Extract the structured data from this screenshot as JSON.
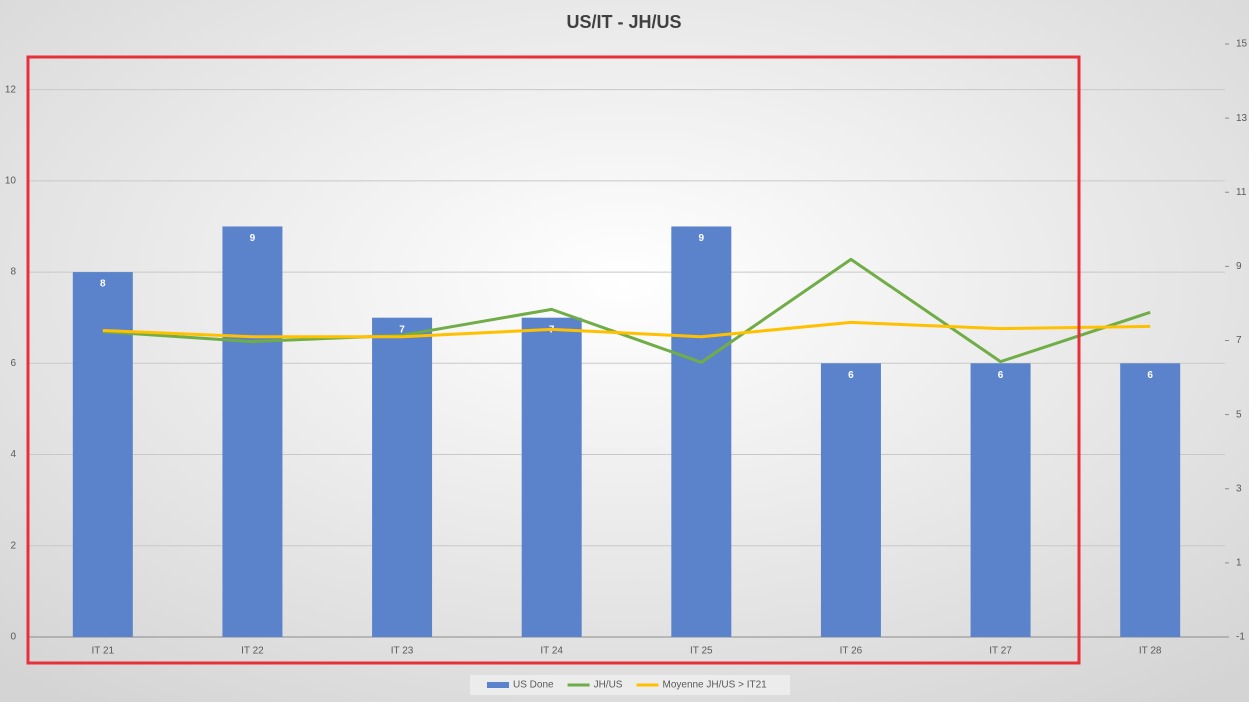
{
  "chart_data": {
    "type": "bar",
    "title": "US/IT  - JH/US",
    "categories": [
      "IT 21",
      "IT 22",
      "IT 23",
      "IT 24",
      "IT 25",
      "IT 26",
      "IT 27",
      "IT 28"
    ],
    "series": [
      {
        "name": "US Done",
        "type": "bar",
        "color": "#5b83cc",
        "values": [
          8,
          9,
          7,
          7,
          9,
          6,
          6,
          6
        ]
      },
      {
        "name": "JH/US",
        "type": "line",
        "axis": "y2",
        "color": "#70ad47",
        "values": [
          7.24,
          6.97,
          7.14,
          7.84,
          6.41,
          9.19,
          6.43,
          7.76
        ]
      },
      {
        "name": "Moyenne JH/US > IT21",
        "type": "line",
        "axis": "y2",
        "color": "#ffc000",
        "values": [
          7.27,
          7.1,
          7.1,
          7.3,
          7.1,
          7.49,
          7.32,
          7.38
        ]
      }
    ],
    "ylim": [
      0,
      13
    ],
    "yticks": [
      0,
      2,
      4,
      6,
      8,
      10,
      12
    ],
    "y2lim": [
      -1,
      15
    ],
    "y2ticks": [
      -1,
      1,
      3,
      5,
      7,
      9,
      11,
      13,
      15
    ],
    "grid": true,
    "legend": "bottom"
  }
}
